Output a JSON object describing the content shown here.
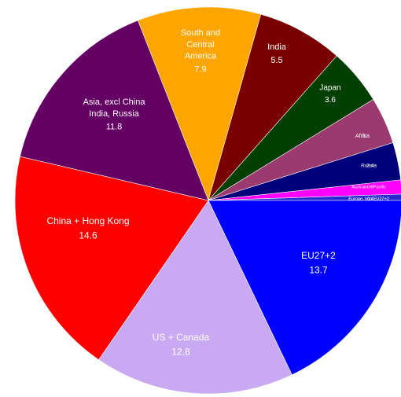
{
  "chart_data": {
    "type": "pie",
    "categories": [
      [
        "South and",
        "Central",
        "America"
      ],
      [
        "India"
      ],
      [
        "Japan"
      ],
      [
        "Africa"
      ],
      [
        "Russia"
      ],
      [
        "Australia + Pacific"
      ],
      [
        "Europe, non EU27+2"
      ],
      [
        "EU27+2"
      ],
      [
        "US + Canada"
      ],
      [
        "China + Hong Kong"
      ],
      [
        "Asia, excl China",
        "India, Russia"
      ]
    ],
    "values": [
      7.9,
      5.5,
      3.6,
      3.0,
      2.4,
      0.9,
      0.4,
      13.7,
      12.8,
      14.6,
      11.8
    ],
    "colors": [
      "#ffa500",
      "#7a0000",
      "#003f00",
      "#9b3a6e",
      "#00007a",
      "#ff00ff",
      "#2a2ad0",
      "#0000ff",
      "#c9aaf2",
      "#ff0000",
      "#640064"
    ]
  }
}
